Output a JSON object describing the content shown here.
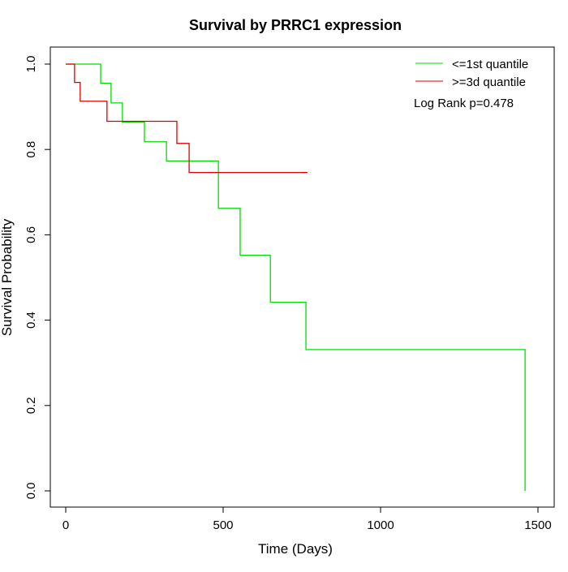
{
  "chart_data": {
    "type": "line",
    "title": "Survival by PRRC1 expression",
    "xlabel": "Time (Days)",
    "ylabel": "Survival Probability",
    "xlim": [
      0,
      1500
    ],
    "ylim": [
      0,
      1
    ],
    "xticks": [
      0,
      500,
      1000,
      1500
    ],
    "yticks": [
      0.0,
      0.2,
      0.4,
      0.6,
      0.8,
      1.0
    ],
    "xtick_labels": [
      "0",
      "500",
      "1000",
      "1500"
    ],
    "ytick_labels": [
      "0.0",
      "0.2",
      "0.4",
      "0.6",
      "0.8",
      "1.0"
    ],
    "legend_position": "top-right",
    "annotation": "Log Rank p=0.478",
    "series": [
      {
        "name": "<=1st quantile",
        "color": "#00DD00",
        "step": true,
        "x": [
          0,
          111,
          144,
          180,
          250,
          320,
          485,
          554,
          650,
          763,
          1459
        ],
        "y": [
          1.0,
          0.955,
          0.909,
          0.864,
          0.818,
          0.773,
          0.662,
          0.552,
          0.442,
          0.331,
          0.0
        ],
        "end": 1459
      },
      {
        "name": ">=3d quantile",
        "color": "#DD0000",
        "step": true,
        "x": [
          0,
          28,
          46,
          131,
          353,
          392
        ],
        "y": [
          1.0,
          0.957,
          0.913,
          0.866,
          0.814,
          0.746
        ],
        "end": 768
      }
    ]
  }
}
